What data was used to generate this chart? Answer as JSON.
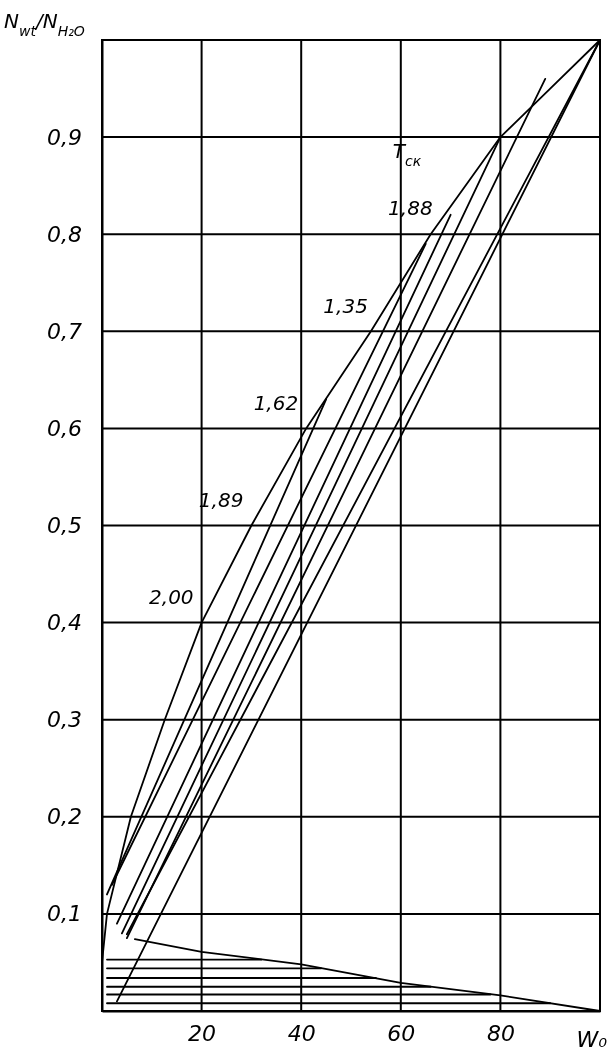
{
  "chart_data": {
    "type": "line",
    "xlabel": "W₀",
    "ylabel": "N$_{wt}$/N$_{H₂O}$",
    "xlim": [
      0,
      100
    ],
    "ylim": [
      0,
      1
    ],
    "xticks": [
      {
        "value": 0,
        "label": null
      },
      20,
      40,
      60,
      80,
      {
        "value": 100,
        "label": null
      }
    ],
    "yticks": [
      {
        "value": 0,
        "label": null
      },
      {
        "value": 0.1,
        "label": "0,1"
      },
      {
        "value": 0.2,
        "label": "0,2"
      },
      {
        "value": 0.3,
        "label": "0,3"
      },
      {
        "value": 0.4,
        "label": "0,4"
      },
      {
        "value": 0.5,
        "label": "0,5"
      },
      {
        "value": 0.6,
        "label": "0,6"
      },
      {
        "value": 0.7,
        "label": "0,7"
      },
      {
        "value": 0.8,
        "label": "0,8"
      },
      {
        "value": 0.9,
        "label": "0,9"
      },
      {
        "value": 1,
        "label": null
      }
    ],
    "grid": true,
    "marker": "none",
    "line_style": "solid",
    "series": [
      {
        "color": "#000000",
        "x": [
          0,
          1,
          5.8,
          12.6,
          20,
          30,
          41,
          54,
          66,
          80,
          90,
          100
        ],
        "values": [
          0.05,
          0.1,
          0.2,
          0.3,
          0.4,
          0.5,
          0.6,
          0.7,
          0.8,
          0.9,
          0.95,
          1.0
        ]
      },
      {
        "color": "#000000",
        "x": [
          6.6,
          20,
          40,
          60,
          80,
          100
        ],
        "values": [
          0.074,
          0.061,
          0.048,
          0.029,
          0.016,
          0
        ]
      },
      {
        "color": "#000000",
        "x": [
          1,
          45
        ],
        "values": [
          0.12,
          0.63
        ]
      },
      {
        "color": "#000000",
        "x": [
          2,
          65
        ],
        "values": [
          0.13,
          0.79
        ]
      },
      {
        "color": "#000000",
        "x": [
          3,
          70
        ],
        "values": [
          0.09,
          0.82
        ]
      },
      {
        "color": "#000000",
        "x": [
          4,
          80
        ],
        "values": [
          0.08,
          0.9
        ]
      },
      {
        "color": "#000000",
        "x": [
          5,
          89
        ],
        "values": [
          0.075,
          0.96
        ]
      },
      {
        "color": "#000000",
        "x": [
          5,
          100
        ],
        "values": [
          0.079,
          1.0
        ]
      },
      {
        "color": "#000000",
        "x": [
          3,
          100
        ],
        "values": [
          0.01,
          1.0
        ]
      },
      {
        "color": "#000000",
        "x": [
          1,
          32
        ],
        "values": [
          0.053,
          0.053
        ]
      },
      {
        "color": "#000000",
        "x": [
          1,
          44
        ],
        "values": [
          0.044,
          0.044
        ]
      },
      {
        "color": "#000000",
        "x": [
          1,
          55
        ],
        "values": [
          0.034,
          0.034
        ]
      },
      {
        "color": "#000000",
        "x": [
          1,
          66
        ],
        "values": [
          0.025,
          0.025
        ]
      },
      {
        "color": "#000000",
        "x": [
          1,
          78
        ],
        "values": [
          0.017,
          0.017
        ]
      },
      {
        "color": "#000000",
        "x": [
          1,
          90
        ],
        "values": [
          0.008,
          0.008
        ]
      }
    ],
    "annotations": [
      {
        "text": "2,00",
        "x": 20,
        "y": 0.41
      },
      {
        "text": "1,89",
        "x": 30,
        "y": 0.51
      },
      {
        "text": "1,62",
        "x": 41,
        "y": 0.61
      },
      {
        "text": "1,35",
        "x": 55,
        "y": 0.71
      },
      {
        "text": "1,88",
        "x": 68,
        "y": 0.81
      },
      "T$_{ск}$"
    ]
  }
}
